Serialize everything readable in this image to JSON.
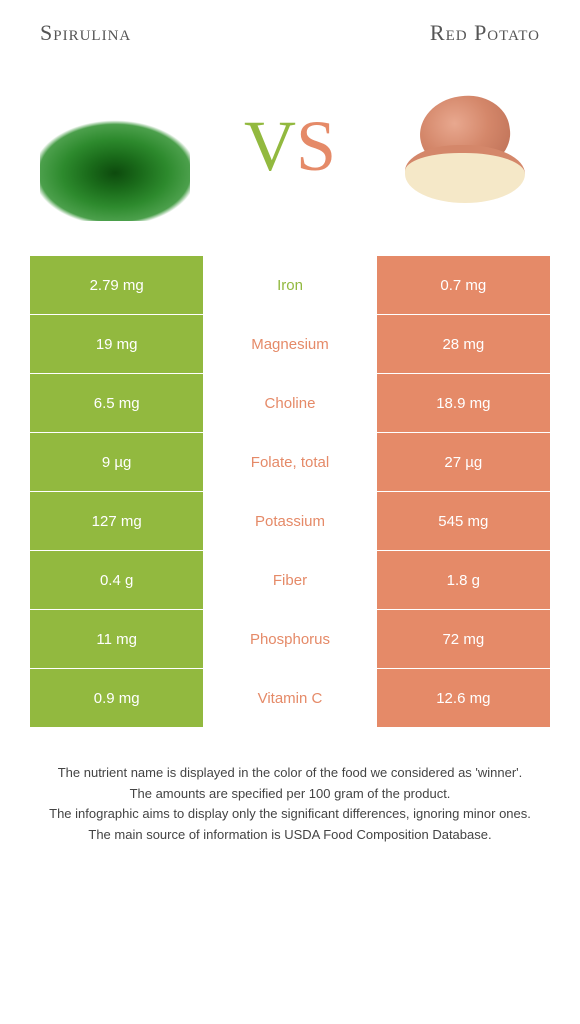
{
  "titles": {
    "left": "Spirulina",
    "right": "Red Potato"
  },
  "vs": {
    "v": "V",
    "s": "S"
  },
  "colors": {
    "left_bg": "#92b93f",
    "right_bg": "#e58a68",
    "left_text": "#92b93f",
    "right_text": "#e58a68"
  },
  "rows": [
    {
      "left": "2.79 mg",
      "label": "Iron",
      "right": "0.7 mg",
      "winner": "left"
    },
    {
      "left": "19 mg",
      "label": "Magnesium",
      "right": "28 mg",
      "winner": "right"
    },
    {
      "left": "6.5 mg",
      "label": "Choline",
      "right": "18.9 mg",
      "winner": "right"
    },
    {
      "left": "9 µg",
      "label": "Folate, total",
      "right": "27 µg",
      "winner": "right"
    },
    {
      "left": "127 mg",
      "label": "Potassium",
      "right": "545 mg",
      "winner": "right"
    },
    {
      "left": "0.4 g",
      "label": "Fiber",
      "right": "1.8 g",
      "winner": "right"
    },
    {
      "left": "11 mg",
      "label": "Phosphorus",
      "right": "72 mg",
      "winner": "right"
    },
    {
      "left": "0.9 mg",
      "label": "Vitamin C",
      "right": "12.6 mg",
      "winner": "right"
    }
  ],
  "footer": [
    "The nutrient name is displayed in the color of the food we considered as 'winner'.",
    "The amounts are specified per 100 gram of the product.",
    "The infographic aims to display only the significant differences, ignoring minor ones.",
    "The main source of information is USDA Food Composition Database."
  ]
}
